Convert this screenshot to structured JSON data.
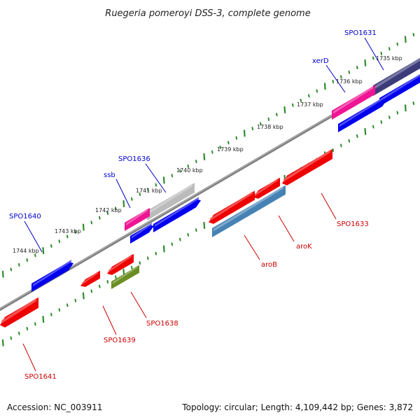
{
  "title": "Ruegeria pomeroyi DSS-3, complete genome",
  "footer": {
    "accession": "Accession: NC_003911",
    "summary": "Topology: circular; Length: 4,109,442 bp; Genes: 3,872"
  },
  "scale_labels": [
    "1735 kbp",
    "1736 kbp",
    "1737 kbp",
    "1738 kbp",
    "1739 kbp",
    "1740 kbp",
    "1741 kbp",
    "1742 kbp",
    "1743 kbp",
    "1744 kbp"
  ],
  "upper_labels": [
    "SPO1631",
    "xerD",
    "SPO1636",
    "ssb",
    "SPO1640"
  ],
  "lower_labels": [
    "SPO1633",
    "aroK",
    "aroB",
    "SPO1638",
    "SPO1639",
    "SPO1641"
  ],
  "colors": {
    "forward_label": "#0000cc",
    "reverse_label": "#cc0000",
    "backbone": "#808080",
    "ticks": "#2e8b2e",
    "gene_blue": "#0000ee",
    "gene_red": "#ee0000",
    "gene_magenta": "#ee1493",
    "gene_grey": "#bbbbbb",
    "gene_steel": "#4682b4",
    "gene_olive": "#6b8e23",
    "gene_navy": "#3b3b7a"
  }
}
